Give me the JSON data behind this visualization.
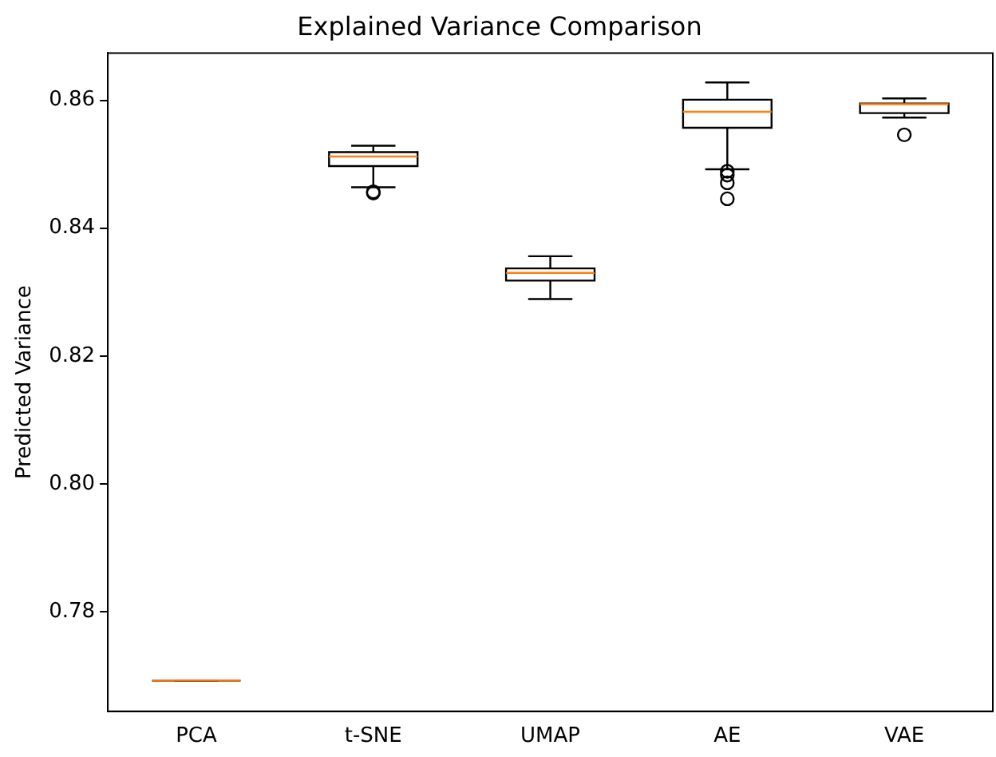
{
  "chart_data": {
    "type": "box",
    "title": "Explained Variance Comparison",
    "ylabel": "Predicted Variance",
    "categories": [
      "PCA",
      "t-SNE",
      "UMAP",
      "AE",
      "VAE"
    ],
    "boxes": [
      {
        "low": 0.7692,
        "q1": 0.7692,
        "median": 0.7692,
        "q3": 0.7692,
        "high": 0.7692
      },
      {
        "low": 0.8464,
        "q1": 0.8497,
        "median": 0.8512,
        "q3": 0.8519,
        "high": 0.8529,
        "outliers": [
          0.8455,
          0.8457
        ]
      },
      {
        "low": 0.8289,
        "q1": 0.8318,
        "median": 0.833,
        "q3": 0.8337,
        "high": 0.8356
      },
      {
        "low": 0.8492,
        "q1": 0.8557,
        "median": 0.8582,
        "q3": 0.8601,
        "high": 0.8628,
        "outliers": [
          0.8489,
          0.8483,
          0.8471,
          0.8446
        ]
      },
      {
        "low": 0.8573,
        "q1": 0.858,
        "median": 0.8594,
        "q3": 0.8595,
        "high": 0.8603,
        "outliers": [
          0.8546
        ]
      }
    ],
    "ylim": [
      0.7644,
      0.8674
    ],
    "yticks": [
      0.78,
      {
        "value": 0.8,
        "label": "0.80"
      },
      0.82,
      0.84,
      0.86
    ]
  }
}
